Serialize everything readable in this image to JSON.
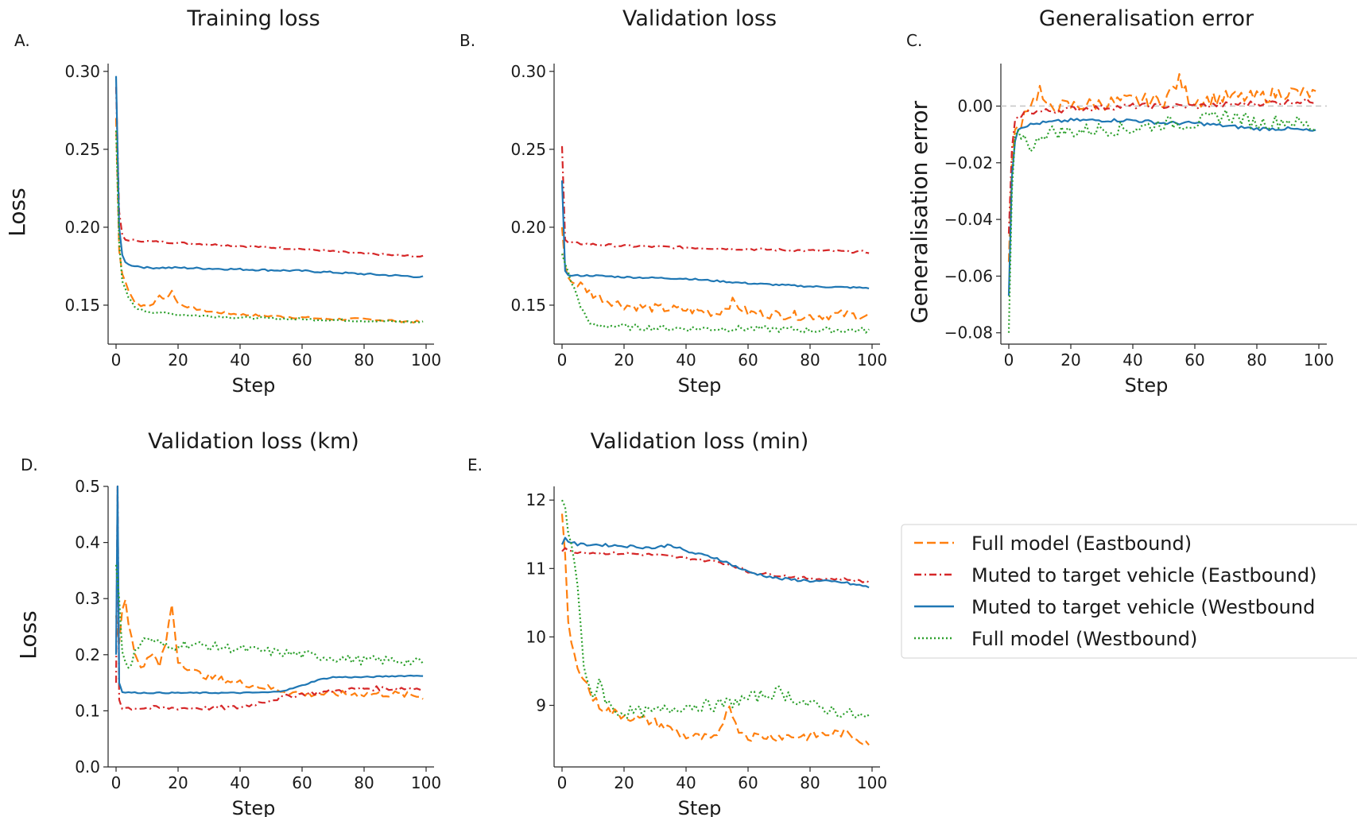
{
  "colors": {
    "full_eastbound": "#ff7f0e",
    "muted_eastbound": "#d62728",
    "muted_westbound": "#1f77b4",
    "full_westbound": "#2ca02c",
    "reference_line": "#c7c7c7"
  },
  "legend": [
    {
      "key": "full_eastbound",
      "label": "Full model (Eastbound)",
      "dash": "dashed"
    },
    {
      "key": "muted_eastbound",
      "label": "Muted to target vehicle (Eastbound)",
      "dash": "dashdot"
    },
    {
      "key": "muted_westbound",
      "label": "Muted to target vehicle (Westbound",
      "dash": "solid"
    },
    {
      "key": "full_westbound",
      "label": "Full model (Westbound)",
      "dash": "dotted"
    }
  ],
  "chart_data": [
    {
      "id": "A",
      "panel_label": "A.",
      "type": "line",
      "title": "Training loss",
      "xlabel": "Step",
      "ylabel": "Loss",
      "xlim": [
        0,
        100
      ],
      "ylim": [
        0.125,
        0.305
      ],
      "xticks": [
        0,
        20,
        40,
        60,
        80,
        100
      ],
      "xtick_labels": [
        "0",
        "20",
        "40",
        "60",
        "80",
        "100"
      ],
      "yticks": [
        0.15,
        0.2,
        0.25,
        0.3
      ],
      "ytick_labels": [
        "0.15",
        "0.20",
        "0.25",
        "0.30"
      ],
      "series": [
        {
          "key": "full_eastbound",
          "x": [
            0,
            1,
            2,
            4,
            6,
            8,
            10,
            12,
            14,
            16,
            18,
            20,
            25,
            30,
            40,
            50,
            60,
            70,
            80,
            90,
            100
          ],
          "y": [
            0.27,
            0.185,
            0.17,
            0.16,
            0.152,
            0.15,
            0.149,
            0.151,
            0.156,
            0.154,
            0.159,
            0.151,
            0.148,
            0.146,
            0.144,
            0.143,
            0.142,
            0.141,
            0.141,
            0.14,
            0.139
          ],
          "noise": 0.0008
        },
        {
          "key": "muted_eastbound",
          "x": [
            0,
            1,
            2,
            3,
            10,
            20,
            40,
            60,
            80,
            100
          ],
          "y": [
            0.29,
            0.21,
            0.195,
            0.192,
            0.191,
            0.19,
            0.188,
            0.186,
            0.183,
            0.181
          ],
          "noise": 0.0006
        },
        {
          "key": "muted_westbound",
          "x": [
            0,
            1,
            2,
            3,
            4,
            10,
            20,
            40,
            60,
            80,
            100
          ],
          "y": [
            0.297,
            0.2,
            0.182,
            0.178,
            0.176,
            0.174,
            0.174,
            0.173,
            0.172,
            0.17,
            0.168
          ],
          "noise": 0.0006
        },
        {
          "key": "full_westbound",
          "x": [
            0,
            1,
            2,
            4,
            6,
            8,
            10,
            15,
            20,
            30,
            40,
            60,
            80,
            100
          ],
          "y": [
            0.262,
            0.19,
            0.165,
            0.155,
            0.149,
            0.147,
            0.146,
            0.145,
            0.144,
            0.143,
            0.142,
            0.141,
            0.14,
            0.139
          ],
          "noise": 0.0007
        }
      ]
    },
    {
      "id": "B",
      "panel_label": "B.",
      "type": "line",
      "title": "Validation loss",
      "xlabel": "Step",
      "ylabel": "",
      "xlim": [
        0,
        100
      ],
      "ylim": [
        0.125,
        0.305
      ],
      "xticks": [
        0,
        20,
        40,
        60,
        80,
        100
      ],
      "xtick_labels": [
        "0",
        "20",
        "40",
        "60",
        "80",
        "100"
      ],
      "yticks": [
        0.15,
        0.2,
        0.25,
        0.3
      ],
      "ytick_labels": [
        "0.15",
        "0.20",
        "0.25",
        "0.30"
      ],
      "series": [
        {
          "key": "full_eastbound",
          "x": [
            0,
            1,
            3,
            6,
            10,
            15,
            20,
            30,
            40,
            50,
            55,
            60,
            70,
            80,
            90,
            100
          ],
          "y": [
            0.2,
            0.175,
            0.165,
            0.163,
            0.157,
            0.153,
            0.15,
            0.148,
            0.147,
            0.145,
            0.152,
            0.145,
            0.144,
            0.143,
            0.144,
            0.143
          ],
          "noise": 0.003
        },
        {
          "key": "muted_eastbound",
          "x": [
            0,
            1,
            2,
            10,
            20,
            40,
            60,
            80,
            100
          ],
          "y": [
            0.252,
            0.192,
            0.19,
            0.189,
            0.188,
            0.187,
            0.186,
            0.185,
            0.184
          ],
          "noise": 0.0008
        },
        {
          "key": "muted_westbound",
          "x": [
            0,
            1,
            2,
            10,
            20,
            40,
            60,
            80,
            100
          ],
          "y": [
            0.23,
            0.172,
            0.169,
            0.169,
            0.168,
            0.167,
            0.164,
            0.162,
            0.161
          ],
          "noise": 0.0005
        },
        {
          "key": "full_westbound",
          "x": [
            0,
            2,
            4,
            6,
            8,
            10,
            15,
            20,
            40,
            60,
            80,
            100
          ],
          "y": [
            0.183,
            0.17,
            0.16,
            0.15,
            0.14,
            0.137,
            0.137,
            0.136,
            0.135,
            0.135,
            0.134,
            0.134
          ],
          "noise": 0.002
        }
      ]
    },
    {
      "id": "C",
      "panel_label": "C.",
      "type": "line",
      "title": "Generalisation error",
      "xlabel": "Step",
      "ylabel": "Generalisation error",
      "xlim": [
        0,
        100
      ],
      "ylim": [
        -0.084,
        0.015
      ],
      "xticks": [
        0,
        20,
        40,
        60,
        80,
        100
      ],
      "xtick_labels": [
        "0",
        "20",
        "40",
        "60",
        "80",
        "100"
      ],
      "yticks": [
        -0.08,
        -0.06,
        -0.04,
        -0.02,
        0.0
      ],
      "ytick_labels": [
        "−0.08",
        "−0.06",
        "−0.04",
        "−0.02",
        "0.00"
      ],
      "reference_y": 0.0,
      "series": [
        {
          "key": "full_eastbound",
          "x": [
            0,
            1,
            2,
            4,
            6,
            8,
            10,
            12,
            14,
            20,
            30,
            40,
            50,
            55,
            58,
            60,
            70,
            80,
            90,
            100
          ],
          "y": [
            -0.055,
            -0.02,
            -0.01,
            -0.005,
            0.0,
            0.002,
            0.006,
            -0.001,
            0.0,
            0.0,
            0.001,
            0.002,
            0.002,
            0.009,
            0.003,
            0.002,
            0.003,
            0.003,
            0.005,
            0.004
          ],
          "noise": 0.0025
        },
        {
          "key": "muted_eastbound",
          "x": [
            0,
            1,
            2,
            4,
            6,
            10,
            20,
            40,
            60,
            80,
            100
          ],
          "y": [
            -0.045,
            -0.015,
            -0.006,
            -0.003,
            -0.002,
            -0.002,
            -0.001,
            0.0,
            0.0,
            0.001,
            0.002
          ],
          "noise": 0.001
        },
        {
          "key": "muted_westbound",
          "x": [
            0,
            1,
            2,
            3,
            5,
            10,
            20,
            30,
            40,
            50,
            60,
            70,
            80,
            90,
            100
          ],
          "y": [
            -0.067,
            -0.025,
            -0.012,
            -0.008,
            -0.007,
            -0.006,
            -0.005,
            -0.005,
            -0.005,
            -0.006,
            -0.006,
            -0.007,
            -0.008,
            -0.008,
            -0.009
          ],
          "noise": 0.0006
        },
        {
          "key": "full_westbound",
          "x": [
            0,
            1,
            2,
            4,
            6,
            8,
            10,
            14,
            20,
            30,
            40,
            50,
            60,
            70,
            80,
            90,
            100
          ],
          "y": [
            -0.08,
            -0.03,
            -0.012,
            -0.01,
            -0.012,
            -0.016,
            -0.01,
            -0.009,
            -0.009,
            -0.008,
            -0.008,
            -0.006,
            -0.006,
            -0.003,
            -0.006,
            -0.005,
            -0.008
          ],
          "noise": 0.0025
        }
      ]
    },
    {
      "id": "D",
      "panel_label": "D.",
      "type": "line",
      "title": "Validation loss (km)",
      "xlabel": "Step",
      "ylabel": "Loss",
      "xlim": [
        0,
        100
      ],
      "ylim": [
        0.0,
        0.5
      ],
      "xticks": [
        0,
        20,
        40,
        60,
        80,
        100
      ],
      "xtick_labels": [
        "0",
        "20",
        "40",
        "60",
        "80",
        "100"
      ],
      "yticks": [
        0.0,
        0.1,
        0.2,
        0.3,
        0.4,
        0.5
      ],
      "ytick_labels": [
        "0.0",
        "0.1",
        "0.2",
        "0.3",
        "0.4",
        "0.5"
      ],
      "series": [
        {
          "key": "full_eastbound",
          "x": [
            0,
            1,
            2,
            3,
            4,
            6,
            8,
            10,
            12,
            14,
            16,
            18,
            20,
            25,
            30,
            40,
            50,
            60,
            70,
            80,
            90,
            100
          ],
          "y": [
            0.27,
            0.22,
            0.28,
            0.3,
            0.26,
            0.2,
            0.18,
            0.19,
            0.2,
            0.18,
            0.22,
            0.29,
            0.19,
            0.17,
            0.16,
            0.15,
            0.14,
            0.13,
            0.13,
            0.13,
            0.13,
            0.125
          ],
          "noise": 0.006
        },
        {
          "key": "muted_eastbound",
          "x": [
            0,
            0.5,
            1,
            2,
            10,
            20,
            30,
            40,
            50,
            55,
            60,
            70,
            80,
            90,
            100
          ],
          "y": [
            0.15,
            0.5,
            0.12,
            0.105,
            0.105,
            0.105,
            0.105,
            0.106,
            0.12,
            0.125,
            0.13,
            0.135,
            0.14,
            0.14,
            0.14
          ],
          "noise": 0.004
        },
        {
          "key": "muted_westbound",
          "x": [
            0,
            0.5,
            1,
            2,
            10,
            20,
            40,
            50,
            55,
            60,
            65,
            70,
            80,
            90,
            100
          ],
          "y": [
            0.2,
            0.5,
            0.15,
            0.133,
            0.132,
            0.132,
            0.132,
            0.133,
            0.137,
            0.145,
            0.155,
            0.16,
            0.16,
            0.162,
            0.163
          ],
          "noise": 0.001
        },
        {
          "key": "full_westbound",
          "x": [
            0,
            1,
            2,
            4,
            6,
            8,
            10,
            14,
            18,
            20,
            30,
            40,
            50,
            60,
            70,
            80,
            90,
            100
          ],
          "y": [
            0.36,
            0.3,
            0.2,
            0.17,
            0.21,
            0.22,
            0.23,
            0.22,
            0.21,
            0.22,
            0.215,
            0.21,
            0.205,
            0.2,
            0.195,
            0.19,
            0.19,
            0.185
          ],
          "noise": 0.008
        }
      ]
    },
    {
      "id": "E",
      "panel_label": "E.",
      "type": "line",
      "title": "Validation loss (min)",
      "xlabel": "Step",
      "ylabel": "",
      "xlim": [
        0,
        100
      ],
      "ylim": [
        8.1,
        12.2
      ],
      "xticks": [
        0,
        20,
        40,
        60,
        80,
        100
      ],
      "xtick_labels": [
        "0",
        "20",
        "40",
        "60",
        "80",
        "100"
      ],
      "yticks": [
        9,
        10,
        11,
        12
      ],
      "ytick_labels": [
        "9",
        "10",
        "11",
        "12"
      ],
      "series": [
        {
          "key": "full_eastbound",
          "x": [
            0,
            1,
            2,
            3,
            4,
            6,
            8,
            10,
            12,
            16,
            20,
            30,
            40,
            50,
            54,
            56,
            60,
            70,
            80,
            90,
            100
          ],
          "y": [
            11.8,
            11.2,
            10.2,
            9.9,
            9.7,
            9.5,
            9.3,
            9.1,
            9.0,
            8.9,
            8.85,
            8.75,
            8.55,
            8.5,
            9.05,
            8.7,
            8.55,
            8.55,
            8.55,
            8.6,
            8.45
          ],
          "noise": 0.07
        },
        {
          "key": "muted_eastbound",
          "x": [
            0,
            1,
            2,
            10,
            20,
            30,
            40,
            50,
            55,
            60,
            70,
            80,
            90,
            100
          ],
          "y": [
            11.25,
            11.3,
            11.25,
            11.23,
            11.22,
            11.2,
            11.15,
            11.1,
            11.05,
            10.95,
            10.9,
            10.85,
            10.85,
            10.8
          ],
          "noise": 0.02
        },
        {
          "key": "muted_westbound",
          "x": [
            0,
            1,
            2,
            5,
            10,
            20,
            30,
            35,
            40,
            50,
            55,
            60,
            70,
            80,
            90,
            100
          ],
          "y": [
            11.35,
            11.45,
            11.4,
            11.35,
            11.35,
            11.33,
            11.3,
            11.35,
            11.25,
            11.15,
            11.05,
            10.95,
            10.85,
            10.82,
            10.8,
            10.72
          ],
          "noise": 0.02
        },
        {
          "key": "full_westbound",
          "x": [
            0,
            1,
            2,
            3,
            4,
            5,
            6,
            7,
            8,
            10,
            12,
            14,
            16,
            20,
            30,
            40,
            50,
            60,
            70,
            80,
            90,
            100
          ],
          "y": [
            12.0,
            11.9,
            11.5,
            11.3,
            11.1,
            10.8,
            10.2,
            9.6,
            9.3,
            9.1,
            9.4,
            9.1,
            8.95,
            8.9,
            8.9,
            9.0,
            9.0,
            9.1,
            9.2,
            9.0,
            8.9,
            8.8
          ],
          "noise": 0.09
        }
      ]
    }
  ]
}
